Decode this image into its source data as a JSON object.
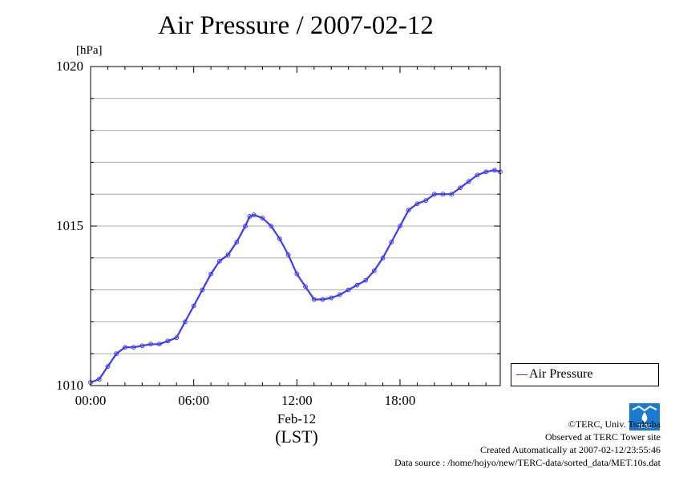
{
  "chart_data": {
    "type": "line",
    "title": "Air Pressure / 2007-02-12",
    "ylabel": "[hPa]",
    "xlabel": "Feb-12",
    "xlabel_sub": "(LST)",
    "ylim": [
      1010,
      1020
    ],
    "xlim": [
      0,
      23.83
    ],
    "y_ticks": [
      "1010",
      "1015",
      "1020"
    ],
    "y_tick_values": [
      1010,
      1015,
      1020
    ],
    "y_minor_step": 1,
    "x_ticks": [
      "00:00",
      "06:00",
      "12:00",
      "18:00"
    ],
    "x_tick_values": [
      0,
      6,
      12,
      18
    ],
    "grid": true,
    "legend_position": "right",
    "series": [
      {
        "name": "Air Pressure",
        "color": "#3a3aff",
        "x": [
          0.0,
          0.5,
          1.0,
          1.5,
          2.0,
          2.5,
          3.0,
          3.5,
          4.0,
          4.5,
          5.0,
          5.5,
          6.0,
          6.5,
          7.0,
          7.5,
          8.0,
          8.5,
          9.0,
          9.25,
          9.5,
          10.0,
          10.5,
          11.0,
          11.5,
          12.0,
          12.5,
          13.0,
          13.5,
          14.0,
          14.5,
          15.0,
          15.5,
          16.0,
          16.5,
          17.0,
          17.5,
          18.0,
          18.5,
          19.0,
          19.5,
          20.0,
          20.5,
          21.0,
          21.5,
          22.0,
          22.5,
          23.0,
          23.5,
          23.83
        ],
        "y": [
          1010.1,
          1010.2,
          1010.6,
          1011.0,
          1011.2,
          1011.2,
          1011.25,
          1011.3,
          1011.3,
          1011.4,
          1011.5,
          1012.0,
          1012.5,
          1013.0,
          1013.5,
          1013.9,
          1014.1,
          1014.5,
          1015.0,
          1015.3,
          1015.35,
          1015.25,
          1015.0,
          1014.6,
          1014.1,
          1013.5,
          1013.1,
          1012.7,
          1012.7,
          1012.75,
          1012.85,
          1013.0,
          1013.15,
          1013.3,
          1013.6,
          1014.0,
          1014.5,
          1015.0,
          1015.5,
          1015.7,
          1015.8,
          1016.0,
          1016.0,
          1016.0,
          1016.2,
          1016.4,
          1016.6,
          1016.7,
          1016.75,
          1016.7
        ]
      }
    ]
  },
  "credits": {
    "copyright": "©TERC, Univ. Tsukuba",
    "observed": "Observed at TERC Tower site",
    "created": "Created Automatically at 2007-02-12/23:55:46",
    "source": "Data source : /home/hojyo/new/TERC-data/sorted_data/MET.10s.dat",
    "logo_text": "TERC",
    "logo_color": "#1a7ad0"
  }
}
